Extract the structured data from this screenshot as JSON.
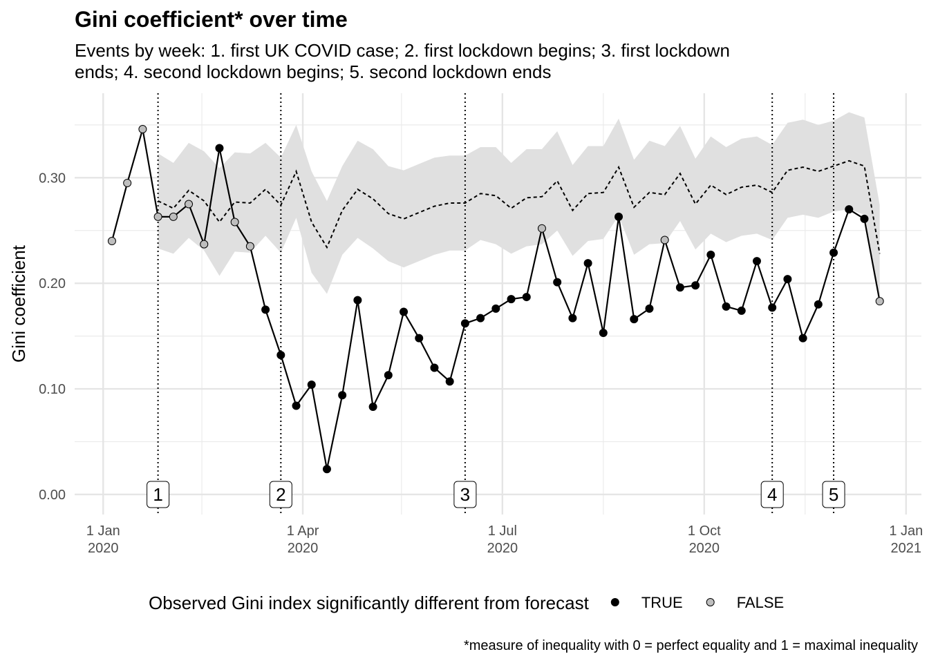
{
  "chart_data": {
    "type": "line",
    "title": "Gini coefficient* over time",
    "subtitle": "Events by week: 1. first UK COVID case; 2. first lockdown begins; 3. first lockdown ends; 4. second lockdown begins; 5. second lockdown ends",
    "y_label": "Gini coefficient",
    "caption": "*measure of inequality with 0 = perfect equality and 1 = maximal inequality",
    "xlim": [
      "2019-12-19",
      "2021-01-08"
    ],
    "xticks": [
      {
        "value": "2020-01-01",
        "label": "1 Jan\n2020"
      },
      {
        "value": "2020-04-01",
        "label": "1 Apr\n2020"
      },
      {
        "value": "2020-07-01",
        "label": "1 Jul\n2020"
      },
      {
        "value": "2020-10-01",
        "label": "1 Oct\n2020"
      },
      {
        "value": "2021-01-01",
        "label": "1 Jan\n2021"
      }
    ],
    "xminorticks": [
      "2020-02-15",
      "2020-05-16",
      "2020-08-16",
      "2020-11-16"
    ],
    "ylim": [
      -0.019,
      0.38
    ],
    "yticks": [
      {
        "value": 0,
        "label": "0.00"
      },
      {
        "value": 0.1,
        "label": "0.10"
      },
      {
        "value": 0.2,
        "label": "0.20"
      },
      {
        "value": 0.3,
        "label": "0.30"
      }
    ],
    "yminorticks": [
      0.05,
      0.15,
      0.25,
      0.35
    ],
    "grid": true,
    "x": [
      "2020-01-05",
      "2020-01-12",
      "2020-01-19",
      "2020-01-26",
      "2020-02-02",
      "2020-02-09",
      "2020-02-16",
      "2020-02-23",
      "2020-03-01",
      "2020-03-08",
      "2020-03-15",
      "2020-03-22",
      "2020-03-29",
      "2020-04-05",
      "2020-04-12",
      "2020-04-19",
      "2020-04-26",
      "2020-05-03",
      "2020-05-10",
      "2020-05-17",
      "2020-05-24",
      "2020-05-31",
      "2020-06-07",
      "2020-06-14",
      "2020-06-21",
      "2020-06-28",
      "2020-07-05",
      "2020-07-12",
      "2020-07-19",
      "2020-07-26",
      "2020-08-02",
      "2020-08-09",
      "2020-08-16",
      "2020-08-23",
      "2020-08-30",
      "2020-09-06",
      "2020-09-13",
      "2020-09-20",
      "2020-09-27",
      "2020-10-04",
      "2020-10-11",
      "2020-10-18",
      "2020-10-25",
      "2020-11-01",
      "2020-11-08",
      "2020-11-15",
      "2020-11-22",
      "2020-11-29",
      "2020-12-06",
      "2020-12-13",
      "2020-12-20"
    ],
    "observed": {
      "color": "#000000",
      "values": [
        0.24,
        0.295,
        0.346,
        0.263,
        0.263,
        0.275,
        0.237,
        0.328,
        0.258,
        0.235,
        0.175,
        0.132,
        0.084,
        0.104,
        0.024,
        0.094,
        0.184,
        0.083,
        0.113,
        0.173,
        0.148,
        0.12,
        0.107,
        0.162,
        0.167,
        0.176,
        0.185,
        0.187,
        0.252,
        0.201,
        0.167,
        0.219,
        0.153,
        0.263,
        0.166,
        0.176,
        0.241,
        0.196,
        0.198,
        0.227,
        0.178,
        0.174,
        0.221,
        0.177,
        0.204,
        0.148,
        0.18,
        0.229,
        0.27,
        0.261,
        0.183
      ],
      "significant": [
        false,
        false,
        false,
        false,
        false,
        false,
        false,
        true,
        false,
        false,
        true,
        true,
        true,
        true,
        true,
        true,
        true,
        true,
        true,
        true,
        true,
        true,
        true,
        true,
        true,
        true,
        true,
        true,
        false,
        true,
        true,
        true,
        true,
        true,
        true,
        true,
        false,
        true,
        true,
        true,
        true,
        true,
        true,
        true,
        true,
        true,
        true,
        true,
        true,
        true,
        false
      ]
    },
    "forecast": {
      "color": "#000000",
      "band_color": "#e0e0e0",
      "values": [
        null,
        null,
        null,
        0.278,
        0.271,
        0.288,
        0.278,
        0.258,
        0.277,
        0.276,
        0.289,
        0.274,
        0.306,
        0.258,
        0.234,
        0.269,
        0.289,
        0.28,
        0.266,
        0.261,
        0.267,
        0.273,
        0.276,
        0.276,
        0.285,
        0.283,
        0.271,
        0.281,
        0.282,
        0.297,
        0.269,
        0.285,
        0.286,
        0.31,
        0.272,
        0.286,
        0.284,
        0.304,
        0.275,
        0.293,
        0.284,
        0.291,
        0.293,
        0.286,
        0.307,
        0.31,
        0.306,
        0.311,
        0.316,
        0.311,
        0.228
      ],
      "upper": [
        null,
        null,
        null,
        0.323,
        0.314,
        0.333,
        0.325,
        0.309,
        0.324,
        0.323,
        0.333,
        0.319,
        0.35,
        0.306,
        0.278,
        0.311,
        0.335,
        0.327,
        0.311,
        0.307,
        0.313,
        0.319,
        0.321,
        0.321,
        0.329,
        0.329,
        0.314,
        0.327,
        0.327,
        0.344,
        0.312,
        0.33,
        0.33,
        0.356,
        0.317,
        0.335,
        0.33,
        0.349,
        0.318,
        0.339,
        0.329,
        0.337,
        0.339,
        0.331,
        0.352,
        0.355,
        0.35,
        0.354,
        0.362,
        0.357,
        0.274
      ],
      "lower": [
        null,
        null,
        null,
        0.233,
        0.228,
        0.243,
        0.231,
        0.207,
        0.23,
        0.229,
        0.245,
        0.229,
        0.262,
        0.21,
        0.19,
        0.227,
        0.243,
        0.233,
        0.221,
        0.215,
        0.221,
        0.227,
        0.231,
        0.231,
        0.241,
        0.237,
        0.228,
        0.235,
        0.237,
        0.25,
        0.226,
        0.24,
        0.242,
        0.264,
        0.227,
        0.237,
        0.238,
        0.259,
        0.232,
        0.247,
        0.239,
        0.245,
        0.247,
        0.241,
        0.262,
        0.265,
        0.262,
        0.268,
        0.27,
        0.265,
        0.182
      ]
    },
    "events": [
      {
        "x": "2020-01-26",
        "label": "1"
      },
      {
        "x": "2020-03-22",
        "label": "2"
      },
      {
        "x": "2020-06-14",
        "label": "3"
      },
      {
        "x": "2020-11-01",
        "label": "4"
      },
      {
        "x": "2020-11-29",
        "label": "5"
      }
    ],
    "legend": {
      "title": "Observed Gini index significantly different from forecast",
      "entries": [
        {
          "label": "TRUE",
          "value": true,
          "color": "#000000"
        },
        {
          "label": "FALSE",
          "value": false,
          "color": "#bebebe"
        }
      ]
    }
  }
}
